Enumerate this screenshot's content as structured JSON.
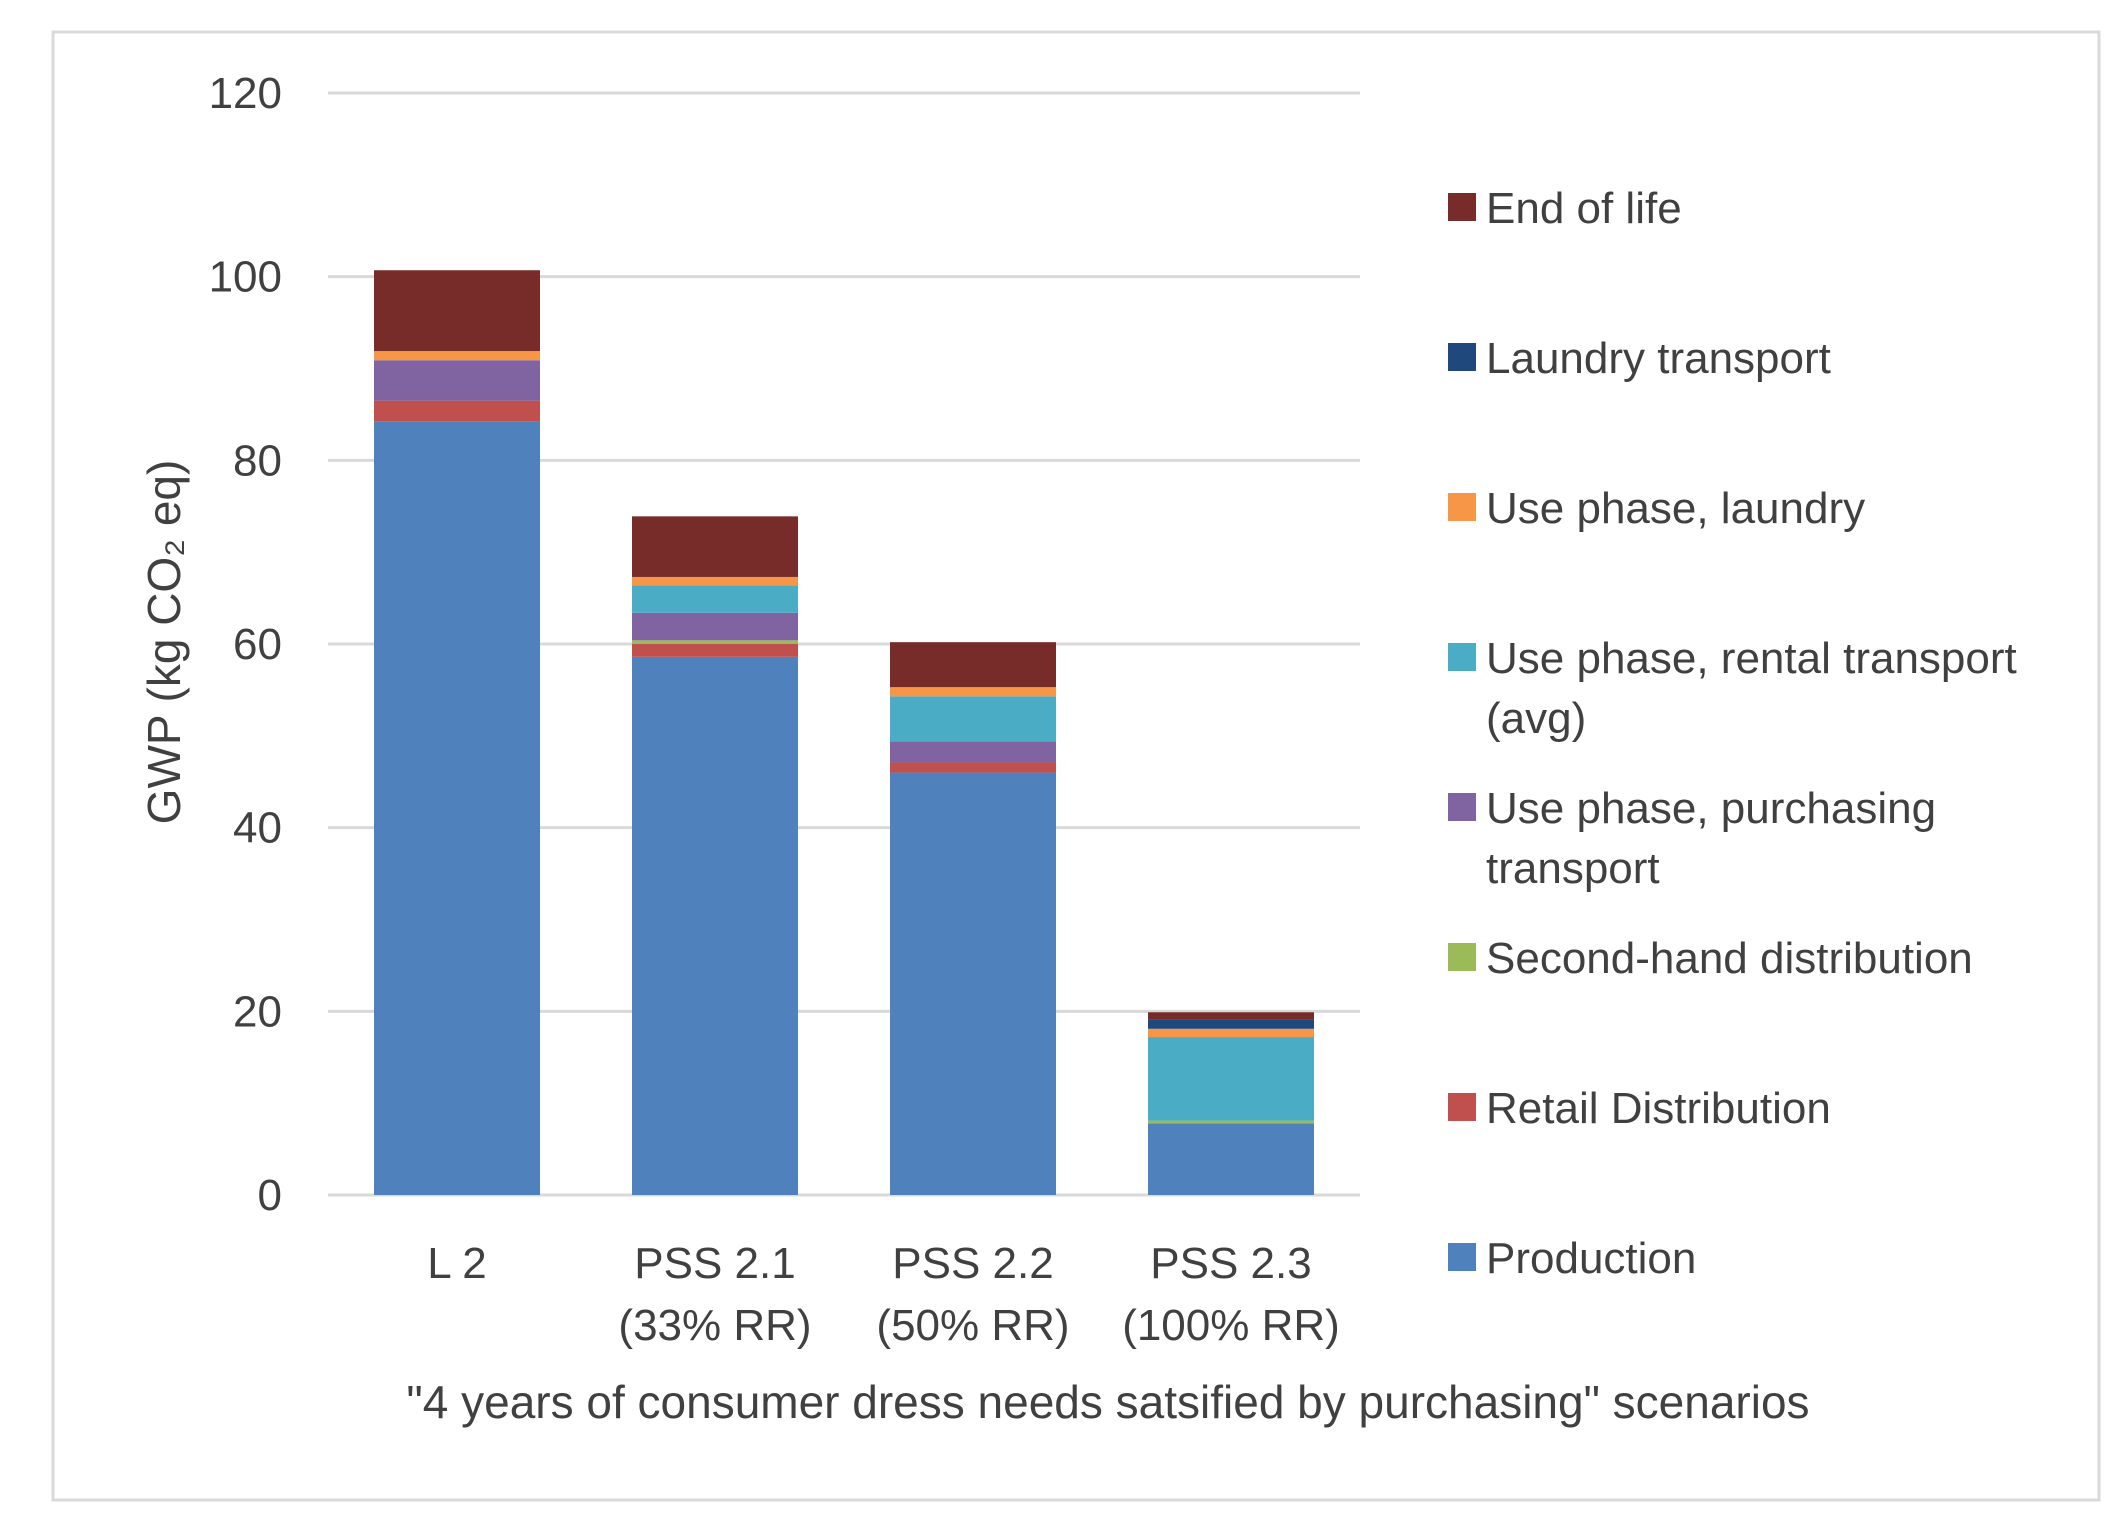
{
  "chart_data": {
    "type": "bar",
    "stacked": true,
    "xlabel": "\"4 years of consumer dress needs satsified by purchasing\" scenarios",
    "ylabel": "GWP (kg CO₂ eq)",
    "ylim": [
      0,
      120
    ],
    "yticks": [
      0,
      20,
      40,
      60,
      80,
      100,
      120
    ],
    "grid": true,
    "legend_position": "right",
    "categories": [
      [
        "L 2"
      ],
      [
        "PSS 2.1",
        "(33% RR)"
      ],
      [
        "PSS 2.2",
        "(50% RR)"
      ],
      [
        "PSS 2.3",
        "(100% RR)"
      ]
    ],
    "series": [
      {
        "name": "Production",
        "color": "#4F81BD",
        "values": [
          84.2,
          58.6,
          46.0,
          7.8
        ]
      },
      {
        "name": "Retail Distribution",
        "color": "#C0504D",
        "values": [
          2.3,
          1.4,
          1.1,
          0.0
        ]
      },
      {
        "name": "Second-hand distribution",
        "color": "#9BBB59",
        "values": [
          0.0,
          0.4,
          0.0,
          0.3
        ]
      },
      {
        "name": "Use phase, purchasing transport",
        "color": "#8064A2",
        "values": [
          4.4,
          3.0,
          2.3,
          0.0
        ]
      },
      {
        "name": "Use phase, rental transport (avg)",
        "color": "#4BACC6",
        "values": [
          0.0,
          3.0,
          4.9,
          9.1
        ]
      },
      {
        "name": "Use phase, laundry",
        "color": "#F79646",
        "values": [
          1.0,
          0.9,
          1.0,
          0.9
        ]
      },
      {
        "name": "Laundry transport",
        "color": "#1F497D",
        "values": [
          0.0,
          0.0,
          0.0,
          1.0
        ]
      },
      {
        "name": "End of life",
        "color": "#772C2A",
        "values": [
          8.8,
          6.6,
          4.9,
          0.8
        ]
      }
    ],
    "legend_labels": [
      {
        "series": "End of life",
        "lines": [
          "End of life"
        ]
      },
      {
        "series": "Laundry transport",
        "lines": [
          "Laundry transport"
        ]
      },
      {
        "series": "Use phase, laundry",
        "lines": [
          "Use phase, laundry"
        ]
      },
      {
        "series": "Use phase, rental transport (avg)",
        "lines": [
          "Use phase, rental transport",
          "(avg)"
        ]
      },
      {
        "series": "Use phase, purchasing transport",
        "lines": [
          "Use phase, purchasing",
          "transport"
        ]
      },
      {
        "series": "Second-hand distribution",
        "lines": [
          "Second-hand distribution"
        ]
      },
      {
        "series": "Retail Distribution",
        "lines": [
          "Retail Distribution"
        ]
      },
      {
        "series": "Production",
        "lines": [
          "Production"
        ]
      }
    ]
  }
}
